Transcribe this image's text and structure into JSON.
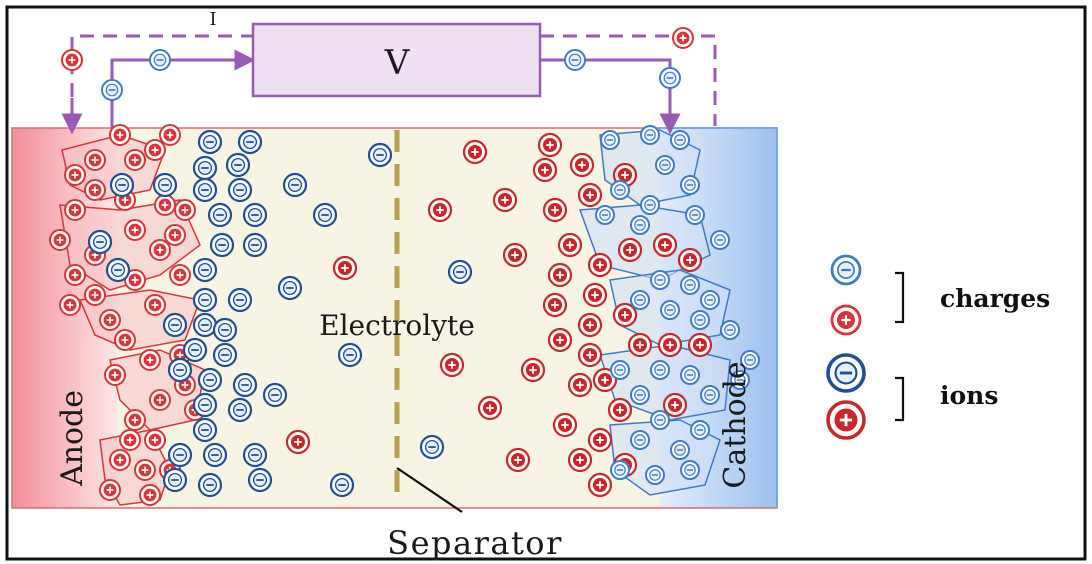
{
  "labels": {
    "current": "I",
    "voltmeter": "V",
    "electrolyte": "Electrolyte",
    "anode": "Anode",
    "cathode": "Cathode",
    "separator": "Separator"
  },
  "legend": {
    "charges": "charges",
    "ions": "ions"
  },
  "colors": {
    "negative": "#3d7cc9",
    "positive": "#d8343a",
    "ion_negative": "#1f4f99",
    "ion_positive": "#c9262c",
    "wire": "#9a5ab5",
    "voltmeter_fill": "#efe0f3",
    "electrolyte_bg": "#f8f4e4",
    "separator": "#b9a14f",
    "anode_shade": "#f3a7ab",
    "cathode_shade": "#a9c8ee"
  },
  "icons": {
    "negative": "minus-sign-icon",
    "positive": "plus-sign-icon"
  }
}
